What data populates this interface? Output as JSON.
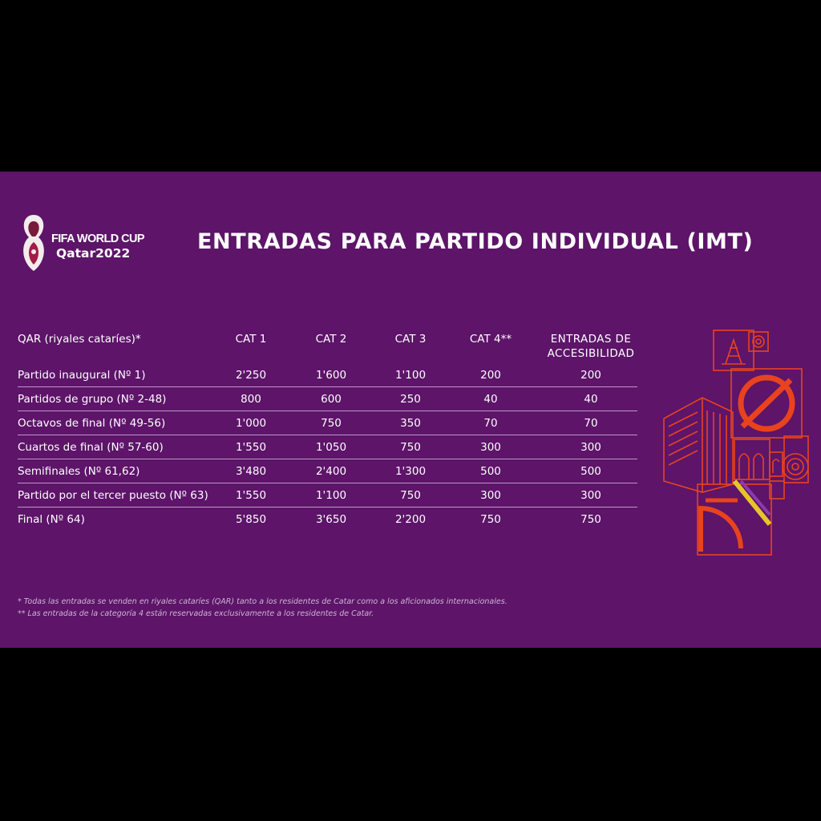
{
  "logo": {
    "line1": "FIFA WORLD CUP",
    "line2": "Qatar2022"
  },
  "title": "ENTRADAS PARA PARTIDO INDIVIDUAL (IMT)",
  "table": {
    "header_label": "QAR (riyales cataríes)*",
    "columns": [
      "CAT 1",
      "CAT 2",
      "CAT 3",
      "CAT 4**"
    ],
    "accessibility_header_line1": "ENTRADAS DE",
    "accessibility_header_line2": "ACCESIBILIDAD",
    "rows": [
      {
        "label": "Partido inaugural   (Nº 1)",
        "values": [
          "2'250",
          "1'600",
          "1'100",
          "200",
          "200"
        ]
      },
      {
        "label": "Partidos de grupo (Nº 2-48)",
        "values": [
          "800",
          "600",
          "250",
          "40",
          "40"
        ]
      },
      {
        "label": "Octavos de final (Nº 49-56)",
        "values": [
          "1'000",
          "750",
          "350",
          "70",
          "70"
        ]
      },
      {
        "label": "Cuartos de final (Nº 57-60)",
        "values": [
          "1'550",
          "1'050",
          "750",
          "300",
          "300"
        ]
      },
      {
        "label": "Semifinales (Nº 61,62)",
        "values": [
          "3'480",
          "2'400",
          "1'300",
          "500",
          "500"
        ]
      },
      {
        "label": "Partido por el tercer puesto (Nº 63)",
        "values": [
          "1'550",
          "1'100",
          "750",
          "300",
          "300"
        ]
      },
      {
        "label": "Final (Nº 64)",
        "values": [
          "5'850",
          "3'650",
          "2'200",
          "750",
          "750"
        ]
      }
    ]
  },
  "footnotes": [
    "* Todas las entradas se venden en riyales cataríes (QAR) tanto a los residentes de Catar como a los aficionados internacionales.",
    "** Las entradas de la categoría 4 están reservadas exclusivamente a los residentes de Catar."
  ],
  "colors": {
    "panel": "#5d1469",
    "accent": "#e8431e",
    "background": "#000000"
  },
  "icons": {
    "logo": "world-cup-trophy-icon",
    "decoration": "qatar-pattern-artwork"
  }
}
